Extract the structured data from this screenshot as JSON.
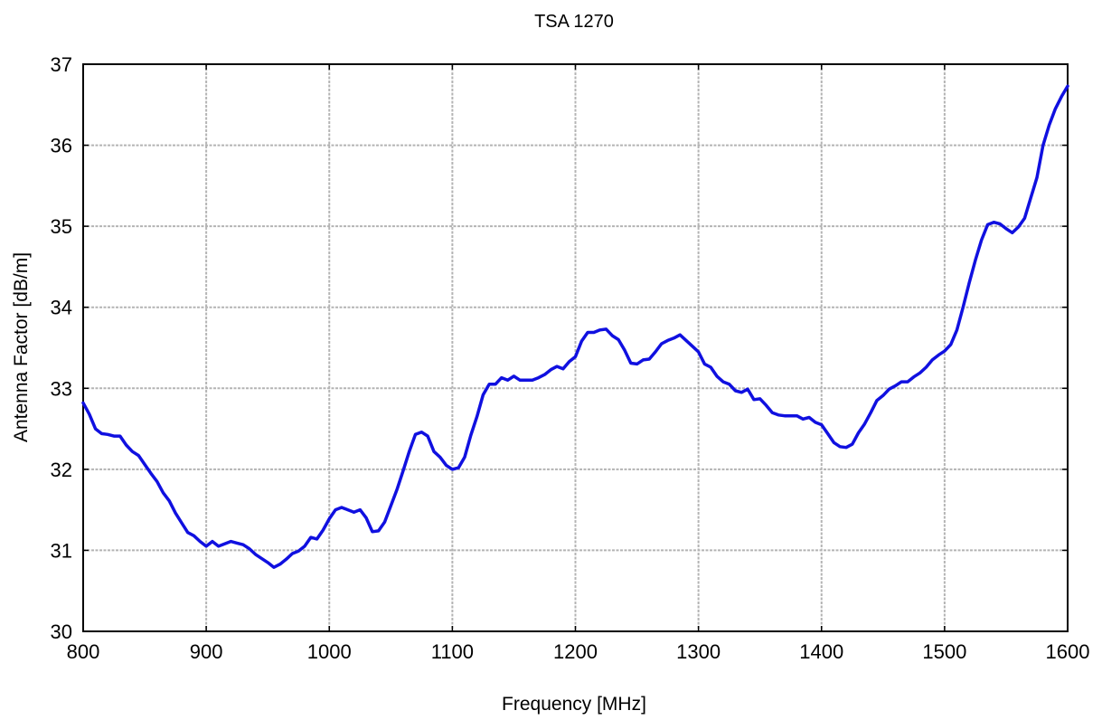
{
  "chart_data": {
    "type": "line",
    "title": "TSA 1270",
    "xlabel": "Frequency [MHz]",
    "ylabel": "Antenna Factor [dB/m]",
    "xlim": [
      800,
      1600
    ],
    "ylim": [
      30,
      37
    ],
    "xticks": [
      800,
      900,
      1000,
      1100,
      1200,
      1300,
      1400,
      1500,
      1600
    ],
    "yticks": [
      30,
      31,
      32,
      33,
      34,
      35,
      36,
      37
    ],
    "grid": true,
    "colors": {
      "line": "#1010e0",
      "grid": "#b4b4b4"
    },
    "series": [
      {
        "x": [
          800,
          805,
          810,
          815,
          820,
          825,
          830,
          835,
          840,
          845,
          850,
          855,
          860,
          865,
          870,
          875,
          880,
          885,
          890,
          895,
          900,
          905,
          910,
          915,
          920,
          925,
          930,
          935,
          940,
          945,
          950,
          955,
          960,
          965,
          970,
          975,
          980,
          985,
          990,
          995,
          1000,
          1005,
          1010,
          1015,
          1020,
          1025,
          1030,
          1035,
          1040,
          1045,
          1050,
          1055,
          1060,
          1065,
          1070,
          1075,
          1080,
          1085,
          1090,
          1095,
          1100,
          1105,
          1110,
          1115,
          1120,
          1125,
          1130,
          1135,
          1140,
          1145,
          1150,
          1155,
          1160,
          1165,
          1170,
          1175,
          1180,
          1185,
          1190,
          1195,
          1200,
          1205,
          1210,
          1215,
          1220,
          1225,
          1230,
          1235,
          1240,
          1245,
          1250,
          1255,
          1260,
          1265,
          1270,
          1275,
          1280,
          1285,
          1290,
          1295,
          1300,
          1305,
          1310,
          1315,
          1320,
          1325,
          1330,
          1335,
          1340,
          1345,
          1350,
          1355,
          1360,
          1365,
          1370,
          1375,
          1380,
          1385,
          1390,
          1395,
          1400,
          1405,
          1410,
          1415,
          1420,
          1425,
          1430,
          1435,
          1440,
          1445,
          1450,
          1455,
          1460,
          1465,
          1470,
          1475,
          1480,
          1485,
          1490,
          1495,
          1500,
          1505,
          1510,
          1515,
          1520,
          1525,
          1530,
          1535,
          1540,
          1545,
          1550,
          1555,
          1560,
          1565,
          1570,
          1575,
          1580,
          1585,
          1590,
          1595,
          1600
        ],
        "y": [
          32.82,
          32.68,
          32.5,
          32.44,
          32.43,
          32.41,
          32.41,
          32.3,
          32.22,
          32.17,
          32.06,
          31.95,
          31.85,
          31.71,
          31.61,
          31.46,
          31.34,
          31.22,
          31.18,
          31.11,
          31.05,
          31.11,
          31.05,
          31.08,
          31.11,
          31.09,
          31.07,
          31.02,
          30.95,
          30.9,
          30.85,
          30.79,
          30.83,
          30.89,
          30.96,
          30.99,
          31.05,
          31.16,
          31.14,
          31.25,
          31.39,
          31.5,
          31.53,
          31.5,
          31.47,
          31.5,
          31.4,
          31.23,
          31.24,
          31.35,
          31.55,
          31.75,
          31.98,
          32.22,
          32.43,
          32.46,
          32.41,
          32.22,
          32.15,
          32.05,
          32.0,
          32.02,
          32.15,
          32.42,
          32.65,
          32.92,
          33.05,
          33.05,
          33.13,
          33.1,
          33.15,
          33.1,
          33.1,
          33.1,
          33.13,
          33.17,
          33.23,
          33.27,
          33.24,
          33.33,
          33.39,
          33.58,
          33.69,
          33.69,
          33.72,
          33.73,
          33.65,
          33.6,
          33.47,
          33.31,
          33.3,
          33.35,
          33.36,
          33.45,
          33.55,
          33.59,
          33.62,
          33.66,
          33.59,
          33.52,
          33.45,
          33.3,
          33.26,
          33.15,
          33.08,
          33.05,
          32.97,
          32.95,
          32.99,
          32.86,
          32.87,
          32.79,
          32.7,
          32.67,
          32.66,
          32.66,
          32.66,
          32.62,
          32.64,
          32.58,
          32.55,
          32.44,
          32.33,
          32.28,
          32.27,
          32.31,
          32.45,
          32.56,
          32.7,
          32.85,
          32.91,
          32.99,
          33.03,
          33.08,
          33.08,
          33.14,
          33.19,
          33.26,
          33.35,
          33.41,
          33.46,
          33.54,
          33.72,
          34.0,
          34.3,
          34.58,
          34.83,
          35.02,
          35.05,
          35.03,
          34.97,
          34.92,
          34.99,
          35.1,
          35.35,
          35.6,
          36.0,
          36.25,
          36.45,
          36.6,
          36.73
        ]
      }
    ]
  }
}
